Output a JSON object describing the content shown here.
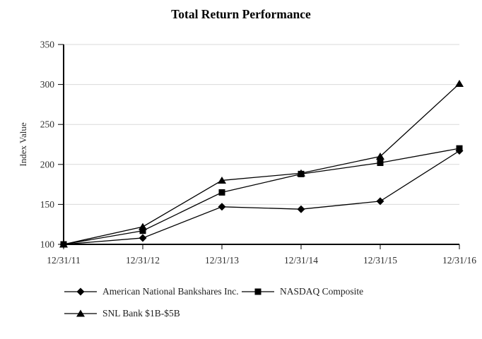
{
  "chart_data": {
    "type": "line",
    "title": "Total Return Performance",
    "xlabel": "",
    "ylabel": "Index Value",
    "categories": [
      "12/31/11",
      "12/31/12",
      "12/31/13",
      "12/31/14",
      "12/31/15",
      "12/31/16"
    ],
    "series": [
      {
        "name": "American National Bankshares Inc.",
        "marker": "diamond",
        "values": [
          100,
          108,
          147,
          144,
          154,
          217
        ]
      },
      {
        "name": "NASDAQ Composite",
        "marker": "square",
        "values": [
          100,
          117,
          165,
          188,
          202,
          220
        ]
      },
      {
        "name": "SNL Bank $1B-$5B",
        "marker": "triangle",
        "values": [
          100,
          122,
          180,
          189,
          210,
          301
        ]
      }
    ],
    "ylim": [
      100,
      350
    ],
    "ytick_step": 50,
    "yticks": [
      100,
      150,
      200,
      250,
      300,
      350
    ],
    "grid": "horizontal",
    "legend_position": "bottom",
    "colors": {
      "line": "#000000",
      "axis": "#000000",
      "grid": "#d9d9d9",
      "tick_label": "#2e2e2e",
      "title": "#000000",
      "background": "#ffffff"
    }
  }
}
